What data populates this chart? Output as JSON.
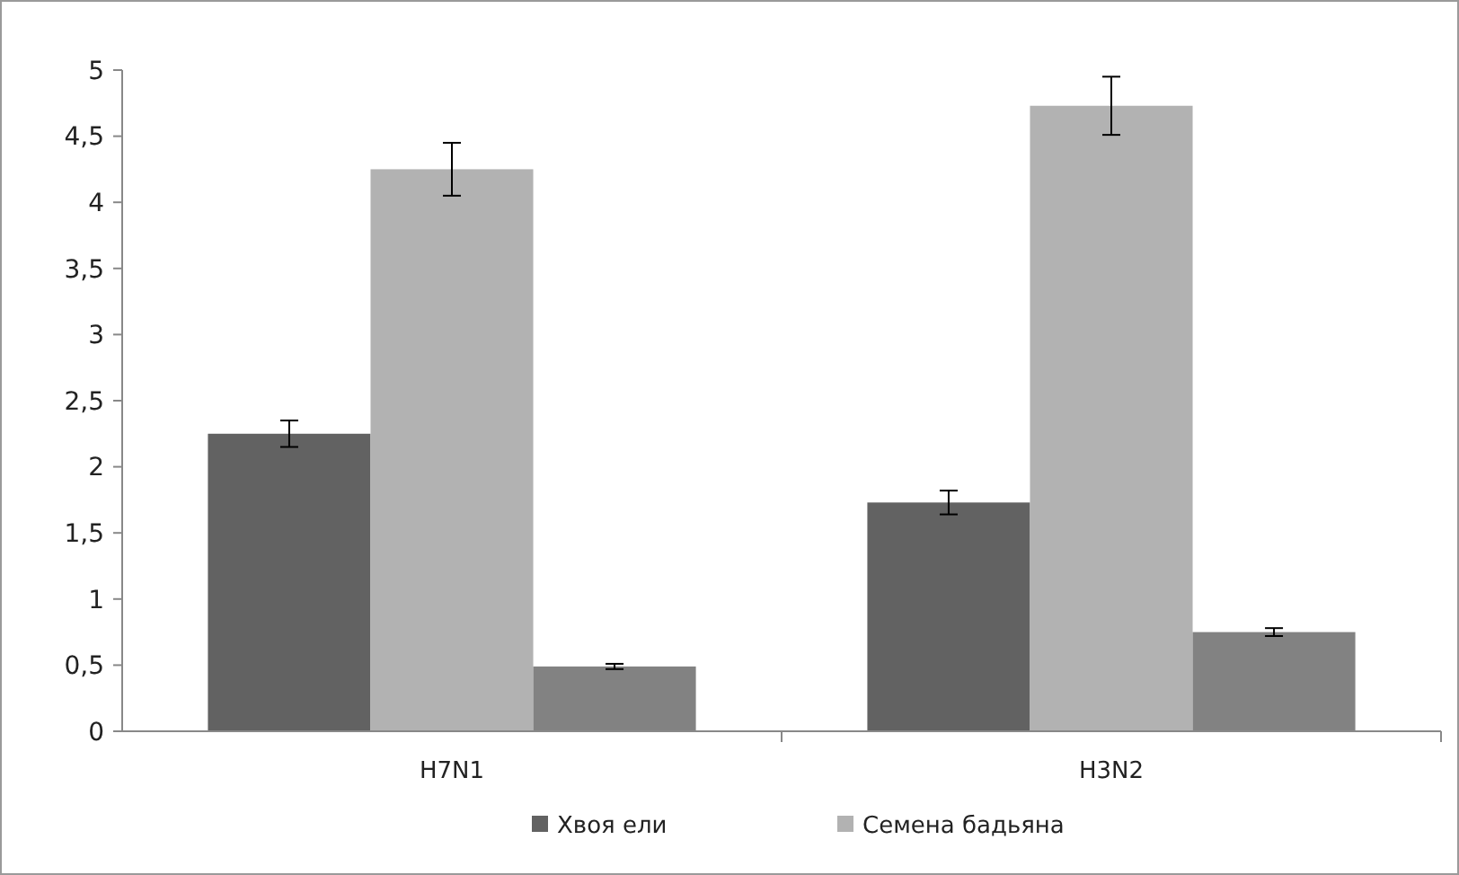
{
  "chart_data": {
    "type": "bar",
    "categories": [
      "H7N1",
      "H3N2"
    ],
    "series": [
      {
        "name": "Хвоя ели",
        "color": "#626262",
        "values": [
          2.25,
          1.73
        ],
        "errors": [
          0.1,
          0.09
        ]
      },
      {
        "name": "Семена бадьяна",
        "color": "#b2b2b2",
        "values": [
          4.25,
          4.73
        ],
        "errors": [
          0.2,
          0.22
        ]
      },
      {
        "color": "#828282",
        "values": [
          0.49,
          0.75
        ],
        "errors": [
          0.02,
          0.03
        ]
      }
    ],
    "ylim": [
      0,
      5
    ],
    "yticks": [
      0,
      {
        "value": 0.5,
        "label": "0,5"
      },
      1,
      {
        "value": 1.5,
        "label": "1,5"
      },
      2,
      {
        "value": 2.5,
        "label": "2,5"
      },
      3,
      {
        "value": 3.5,
        "label": "3,5"
      },
      4,
      {
        "value": 4.5,
        "label": "4,5"
      },
      5
    ],
    "grid": false,
    "legend": "bottom"
  }
}
